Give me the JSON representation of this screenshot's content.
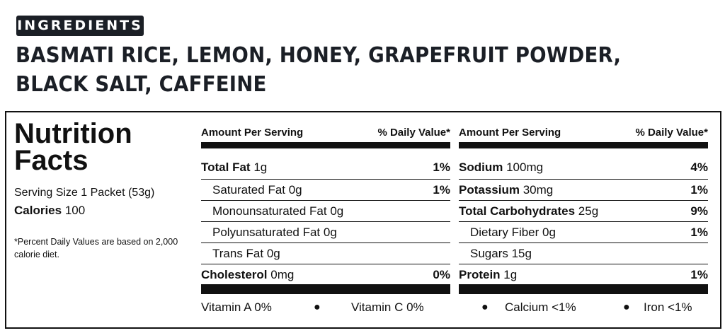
{
  "ingredients": {
    "badge": "INGREDIENTS",
    "line1": "BASMATI RICE, LEMON, HONEY, GRAPEFRUIT POWDER,",
    "line2": "BLACK SALT, CAFFEINE"
  },
  "facts": {
    "title_line1": "Nutrition",
    "title_line2": "Facts",
    "serving_size": "Serving Size 1 Packet (53g)",
    "calories_label": "Calories",
    "calories_value": "100",
    "footnote": "*Percent Daily Values are based on 2,000 calorie diet."
  },
  "left_col": {
    "head_amount": "Amount Per Serving",
    "head_dv": "% Daily Value*",
    "rows": [
      {
        "name": "Total Fat",
        "amount": "1g",
        "pct": "1%"
      },
      {
        "name": "Saturated Fat 0g",
        "amount": "",
        "pct": "1%"
      },
      {
        "name": "Monounsaturated Fat 0g",
        "amount": "",
        "pct": ""
      },
      {
        "name": "Polyunsaturated Fat 0g",
        "amount": "",
        "pct": ""
      },
      {
        "name": "Trans Fat 0g",
        "amount": "",
        "pct": ""
      },
      {
        "name": "Cholesterol",
        "amount": "0mg",
        "pct": "0%"
      }
    ]
  },
  "right_col": {
    "head_amount": "Amount Per Serving",
    "head_dv": "% Daily Value*",
    "rows": [
      {
        "name": "Sodium",
        "amount": "100mg",
        "pct": "4%"
      },
      {
        "name": "Potassium",
        "amount": "30mg",
        "pct": "1%"
      },
      {
        "name": "Total Carbohydrates",
        "amount": "25g",
        "pct": "9%"
      },
      {
        "name": "Dietary Fiber 0g",
        "amount": "",
        "pct": "1%"
      },
      {
        "name": "Sugars 15g",
        "amount": "",
        "pct": ""
      },
      {
        "name": "Protein",
        "amount": "1g",
        "pct": "1%"
      }
    ]
  },
  "vitamins": {
    "vitamin_a": "Vitamin A 0%",
    "vitamin_c": "Vitamin C  0%",
    "calcium": "Calcium <1%",
    "iron": "Iron <1%",
    "separator": "●"
  }
}
